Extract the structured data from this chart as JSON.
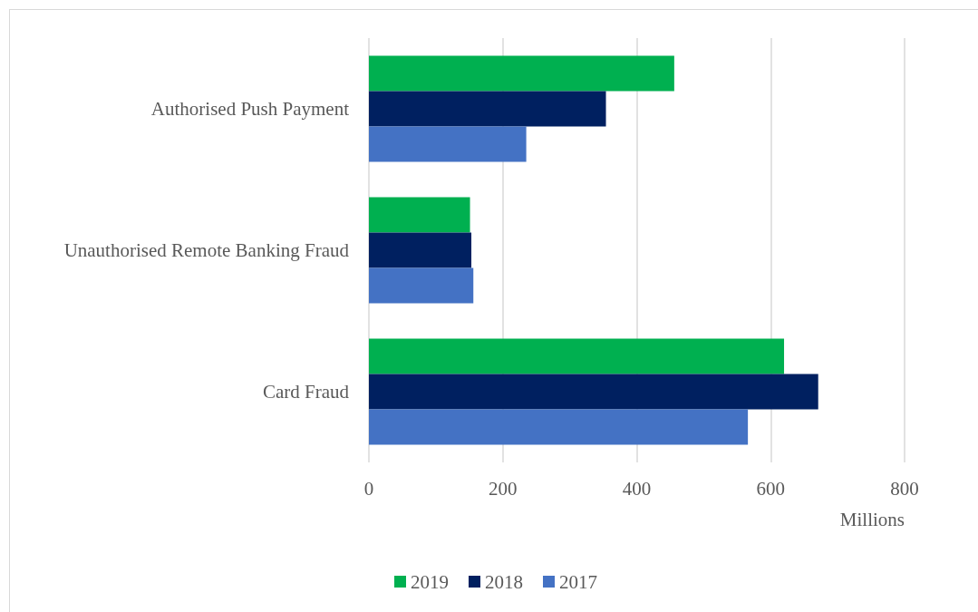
{
  "chart_data": {
    "type": "bar",
    "orientation": "horizontal",
    "xlabel": "Millions",
    "categories": [
      "Authorised Push Payment",
      "Unauthorised Remote Banking Fraud",
      "Card Fraud"
    ],
    "series": [
      {
        "name": "2019",
        "color": "#00b050",
        "values": [
          456,
          151,
          620
        ]
      },
      {
        "name": "2018",
        "color": "#002060",
        "values": [
          354,
          153,
          671
        ]
      },
      {
        "name": "2017",
        "color": "#4472c4",
        "values": [
          235,
          156,
          566
        ]
      }
    ],
    "xlim": [
      0,
      800
    ],
    "xticks": [
      0,
      200,
      400,
      600,
      800
    ],
    "grid": "x",
    "legend": "bottom"
  }
}
